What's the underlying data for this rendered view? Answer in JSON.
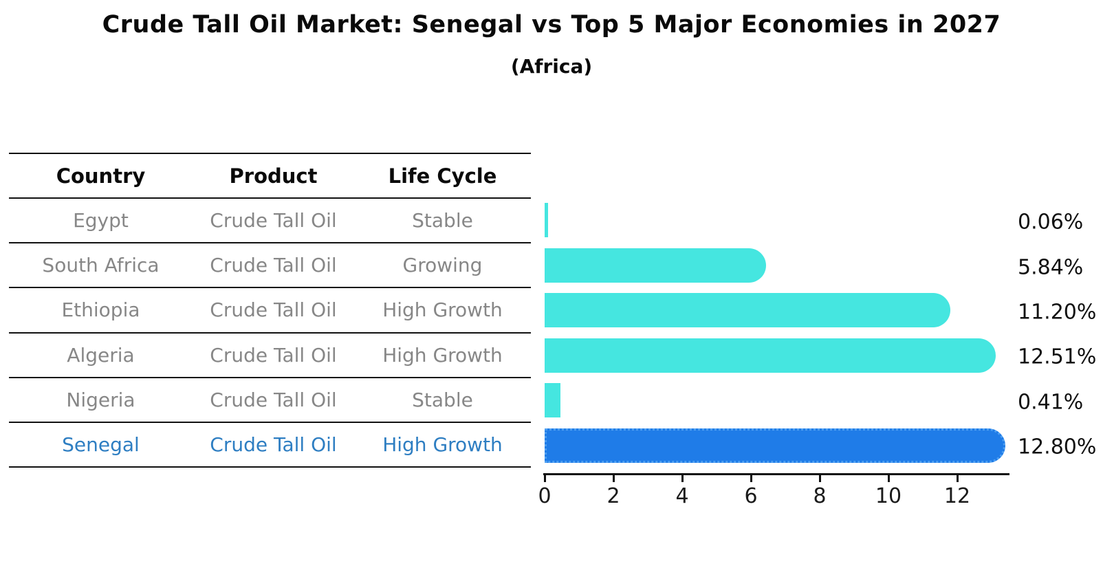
{
  "title": "Crude Tall Oil Market: Senegal vs Top 5 Major Economies in 2027",
  "subtitle": "(Africa)",
  "table": {
    "headers": [
      "Country",
      "Product",
      "Life Cycle"
    ],
    "rows": [
      {
        "country": "Egypt",
        "product": "Crude Tall Oil",
        "life_cycle": "Stable",
        "highlight": false
      },
      {
        "country": "South Africa",
        "product": "Crude Tall Oil",
        "life_cycle": "Growing",
        "highlight": false
      },
      {
        "country": "Ethiopia",
        "product": "Crude Tall Oil",
        "life_cycle": "High Growth",
        "highlight": false
      },
      {
        "country": "Algeria",
        "product": "Crude Tall Oil",
        "life_cycle": "High Growth",
        "highlight": false
      },
      {
        "country": "Nigeria",
        "product": "Crude Tall Oil",
        "life_cycle": "Stable",
        "highlight": false
      },
      {
        "country": "Senegal",
        "product": "Crude Tall Oil",
        "life_cycle": "High Growth",
        "highlight": true
      }
    ]
  },
  "chart_data": {
    "type": "bar",
    "orientation": "horizontal",
    "title": "Crude Tall Oil Market: Senegal vs Top 5 Major Economies in 2027",
    "subtitle": "(Africa)",
    "categories": [
      "Egypt",
      "South Africa",
      "Ethiopia",
      "Algeria",
      "Nigeria",
      "Senegal"
    ],
    "values": [
      0.06,
      5.84,
      11.2,
      12.51,
      0.41,
      12.8
    ],
    "value_labels": [
      "0.06%",
      "5.84%",
      "11.20%",
      "12.51%",
      "0.41%",
      "12.80%"
    ],
    "highlight_index": 5,
    "x_ticks": [
      0,
      2,
      4,
      6,
      8,
      10,
      12
    ],
    "xlim": [
      0,
      13.5
    ],
    "xlabel": "",
    "ylabel": "",
    "grid": false,
    "legend": false
  },
  "colors": {
    "bar": "#45E6E0",
    "highlight_bar": "#1F7CE8",
    "highlight_bar_edge": "#4D9FF2",
    "highlight_text": "#2E7EC2",
    "table_text": "#878787",
    "header_text": "#0a0a0a",
    "axis": "#111111"
  }
}
